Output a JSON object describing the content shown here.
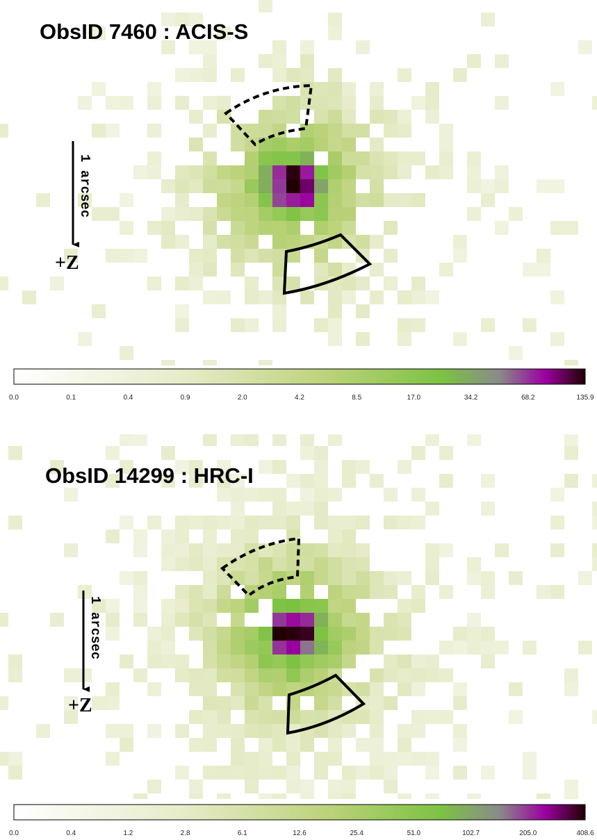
{
  "panels": [
    {
      "title": "ObsID 7460 : ACIS-S",
      "scale_label": "1 arcsec",
      "direction_label": "+Z",
      "colorbar_ticks": [
        "0.0",
        "0.1",
        "0.4",
        "0.9",
        "2.0",
        "4.2",
        "8.5",
        "17.0",
        "34.2",
        "68.2",
        "135.9"
      ]
    },
    {
      "title": "ObsID 14299 : HRC-I",
      "scale_label": "1 arcsec",
      "direction_label": "+Z",
      "colorbar_ticks": [
        "0.0",
        "0.4",
        "1.2",
        "2.8",
        "6.1",
        "12.6",
        "25.4",
        "51.0",
        "102.7",
        "205.0",
        "408.6"
      ]
    }
  ]
}
